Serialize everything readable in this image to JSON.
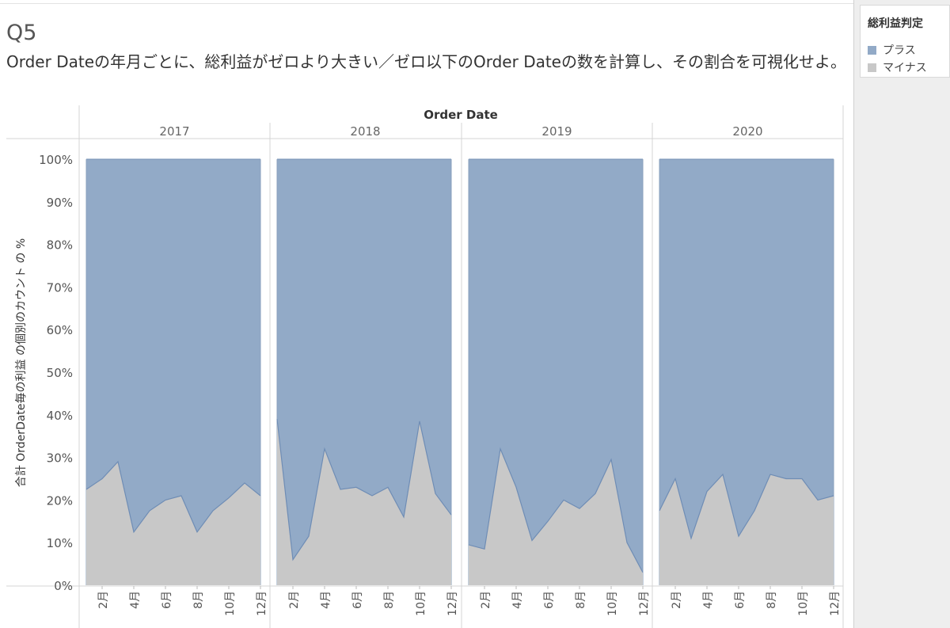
{
  "title": "Q5",
  "subtitle": "Order Dateの年月ごとに、総利益がゼロより大きい／ゼロ以下のOrder Dateの数を計算し、その割合を可視化せよ。",
  "legend": {
    "title": "総利益判定",
    "items": [
      {
        "label": "プラス",
        "color": "#92aac7"
      },
      {
        "label": "マイナス",
        "color": "#c8c8c8"
      }
    ]
  },
  "chart_data": {
    "type": "area",
    "stacked_percent": true,
    "column_header": "Order Date",
    "ylabel": "合計 OrderDate毎の利益 の個別のカウント の %",
    "ylim": [
      0,
      100
    ],
    "yticks": [
      "0%",
      "10%",
      "20%",
      "30%",
      "40%",
      "50%",
      "60%",
      "70%",
      "80%",
      "90%",
      "100%"
    ],
    "xtick_labels": [
      "2月",
      "4月",
      "6月",
      "8月",
      "10月",
      "12月"
    ],
    "xtick_months": [
      2,
      4,
      6,
      8,
      10,
      12
    ],
    "months": [
      1,
      2,
      3,
      4,
      5,
      6,
      7,
      8,
      9,
      10,
      11,
      12
    ],
    "panels": [
      {
        "year": "2017",
        "minus": [
          22.5,
          25,
          29,
          12.5,
          17.5,
          20,
          21,
          12.5,
          17.5,
          20.5,
          24,
          21
        ]
      },
      {
        "year": "2018",
        "minus": [
          39,
          6,
          11.5,
          32,
          22.5,
          23,
          21,
          23,
          16,
          38.5,
          21.5,
          16.5
        ]
      },
      {
        "year": "2019",
        "minus": [
          9.5,
          8.5,
          32,
          23,
          10.5,
          15,
          20,
          18,
          21.5,
          29.5,
          10,
          3
        ]
      },
      {
        "year": "2020",
        "minus": [
          17.5,
          25,
          11,
          22,
          26,
          11.5,
          17.5,
          26,
          25,
          25,
          20,
          21
        ]
      }
    ],
    "series": [
      {
        "name": "プラス",
        "color": "#92aac7"
      },
      {
        "name": "マイナス",
        "color": "#c8c8c8"
      }
    ],
    "grid": false
  }
}
